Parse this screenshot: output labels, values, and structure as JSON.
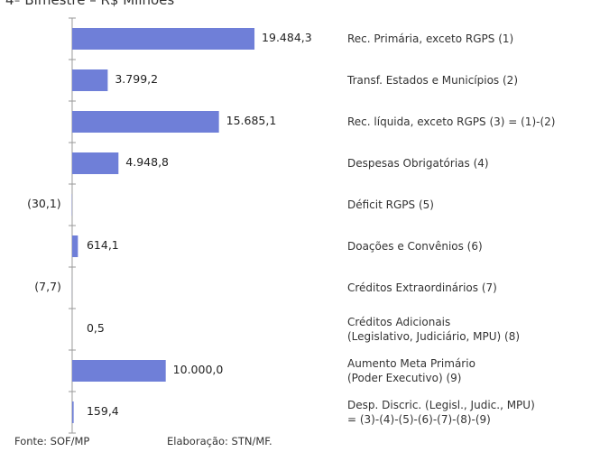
{
  "chart_data": {
    "type": "barh",
    "title": "4º Bimestre – R$ Milhões",
    "categories": [
      "Rec. Primária, exceto RGPS (1)",
      "Transf. Estados e Municípios (2)",
      "Rec. líquida, exceto RGPS (3) = (1)-(2)",
      "Despesas Obrigatórias (4)",
      "Déficit RGPS (5)",
      "Doações e Convênios (6)",
      "Créditos Extraordinários (7)",
      "Créditos Adicionais\n(Legislativo, Judiciário, MPU) (8)",
      "Aumento Meta Primário\n(Poder Executivo) (9)",
      "Desp. Discric. (Legisl., Judic., MPU)\n= (3)-(4)-(5)-(6)-(7)-(8)-(9)"
    ],
    "values": [
      19484.3,
      3799.2,
      15685.1,
      4948.8,
      -30.1,
      614.1,
      -7.7,
      0.5,
      10000.0,
      159.4
    ],
    "value_labels": [
      "19.484,3",
      "3.799,2",
      "15.685,1",
      "4.948,8",
      "(30,1)",
      "614,1",
      "(7,7)",
      "0,5",
      "10.000,0",
      "159,4"
    ],
    "color": "#6f7fd8",
    "xlim": [
      -1000,
      20000
    ],
    "source": "Fonte: SOF/MP",
    "credit": "Elaboração: STN/MF."
  }
}
